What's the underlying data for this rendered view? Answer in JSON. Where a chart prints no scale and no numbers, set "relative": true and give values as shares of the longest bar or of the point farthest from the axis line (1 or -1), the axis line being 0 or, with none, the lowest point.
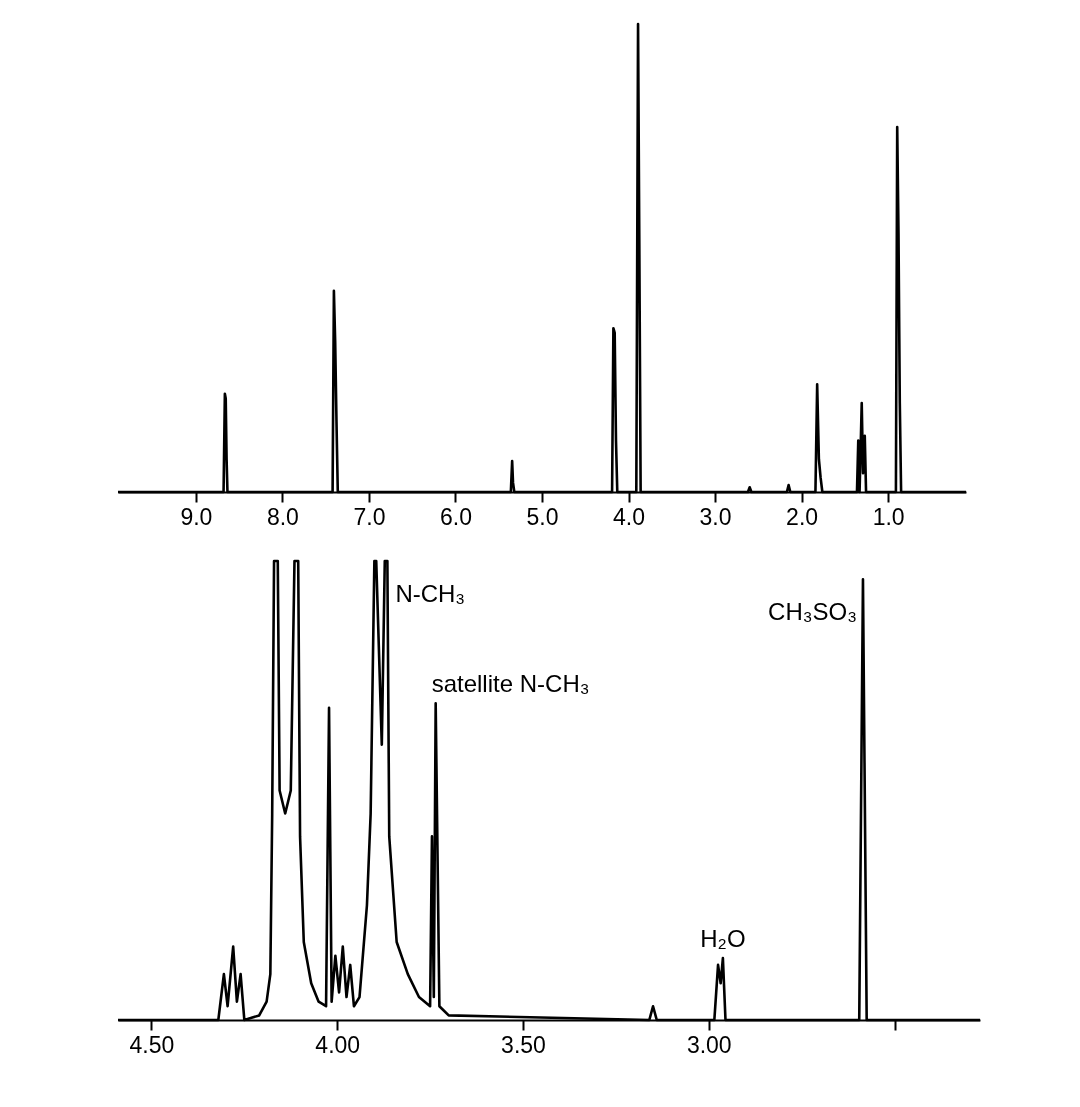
{
  "chart_data": [
    {
      "type": "line",
      "relative": true,
      "tick_labels": "x",
      "xlim": [
        9.9,
        0.1
      ],
      "xticks": [
        {
          "value": 9,
          "label": "9.0"
        },
        {
          "value": 8,
          "label": "8.0"
        },
        {
          "value": 7,
          "label": "7.0"
        },
        {
          "value": 6,
          "label": "6.0"
        },
        {
          "value": 5,
          "label": "5.0"
        },
        {
          "value": 4,
          "label": "4.0"
        },
        {
          "value": 3,
          "label": "3.0"
        },
        {
          "value": 2,
          "label": "2.0"
        },
        {
          "value": 1,
          "label": "1.0"
        }
      ],
      "series": [
        {
          "color": "#000000",
          "x": [
            9.9,
            8.68,
            8.665,
            8.655,
            8.645,
            8.635,
            7.42,
            7.405,
            7.39,
            7.375,
            7.36,
            5.36,
            5.345,
            5.335,
            5.32,
            4.19,
            4.175,
            4.16,
            4.145,
            4.13,
            3.91,
            3.89,
            3.875,
            3.86,
            2.62,
            2.6,
            2.58,
            2.17,
            2.15,
            2.13,
            1.84,
            1.82,
            1.8,
            1.78,
            1.76,
            1.36,
            1.345,
            1.33,
            1.305,
            1.29,
            1.27,
            1.255,
            0.91,
            0.895,
            0.88,
            0.865,
            0.85,
            0.1
          ],
          "values": [
            0,
            0,
            0.21,
            0.2,
            0.07,
            0,
            0,
            0.43,
            0.32,
            0.15,
            0,
            0,
            0.066,
            0.02,
            0,
            0,
            0.35,
            0.34,
            0.11,
            0,
            0,
            1.0,
            0.52,
            0,
            0,
            0.01,
            0,
            0,
            0.015,
            0,
            0,
            0.23,
            0.07,
            0.03,
            0,
            0,
            0.11,
            0,
            0.19,
            0.04,
            0.12,
            0,
            0,
            0.78,
            0.55,
            0.19,
            0,
            0
          ]
        }
      ]
    },
    {
      "type": "line",
      "relative": true,
      "tick_labels": "x",
      "xlim": [
        4.59,
        2.27
      ],
      "xticks": [
        {
          "value": 4.5,
          "label": "4.50"
        },
        {
          "value": 4,
          "label": "4.00"
        },
        {
          "value": 3.5,
          "label": "3.50"
        },
        {
          "value": 3,
          "label": "3.00"
        },
        {
          "value": 2.5,
          "label": null
        }
      ],
      "annotations": [
        {
          "text": "N-CH₃",
          "x": 3.865,
          "y": 1.0
        },
        {
          "text": "satellite N-CH₃",
          "x": 3.735,
          "y": 0.69
        },
        {
          "text": "H₂O",
          "x": 2.962,
          "y": 0.135
        },
        {
          "text": "CH₃SO₃",
          "x": 2.585,
          "y": 0.96
        }
      ],
      "series": [
        {
          "color": "#000000",
          "x": [
            4.59,
            4.32,
            4.305,
            4.295,
            4.28,
            4.27,
            4.26,
            4.25,
            4.21,
            4.19,
            4.18,
            4.175,
            4.17,
            4.16,
            4.155,
            4.14,
            4.125,
            4.115,
            4.105,
            4.1,
            4.09,
            4.07,
            4.05,
            4.03,
            4.022,
            4.015,
            4.005,
            3.995,
            3.985,
            3.975,
            3.965,
            3.955,
            3.94,
            3.92,
            3.91,
            3.9,
            3.895,
            3.88,
            3.872,
            3.865,
            3.86,
            3.84,
            3.81,
            3.78,
            3.75,
            3.745,
            3.74,
            3.735,
            3.725,
            3.7,
            3.16,
            3.15,
            3.14,
            2.985,
            2.975,
            2.968,
            2.962,
            2.955,
            2.595,
            2.585,
            2.575,
            2.27
          ],
          "values": [
            0,
            0,
            0.1,
            0.03,
            0.16,
            0.04,
            0.1,
            0,
            0.01,
            0.04,
            0.1,
            0.45,
            1.0,
            1.0,
            0.5,
            0.45,
            0.5,
            1.0,
            1.0,
            0.4,
            0.17,
            0.08,
            0.04,
            0.03,
            0.68,
            0.04,
            0.14,
            0.06,
            0.16,
            0.05,
            0.12,
            0.03,
            0.05,
            0.25,
            0.45,
            1.0,
            1.0,
            0.6,
            1.0,
            1.0,
            0.4,
            0.17,
            0.1,
            0.05,
            0.03,
            0.4,
            0.05,
            0.69,
            0.03,
            0.01,
            0,
            0.03,
            0,
            0,
            0.12,
            0.08,
            0.135,
            0,
            0,
            0.96,
            0,
            0
          ]
        }
      ]
    }
  ]
}
